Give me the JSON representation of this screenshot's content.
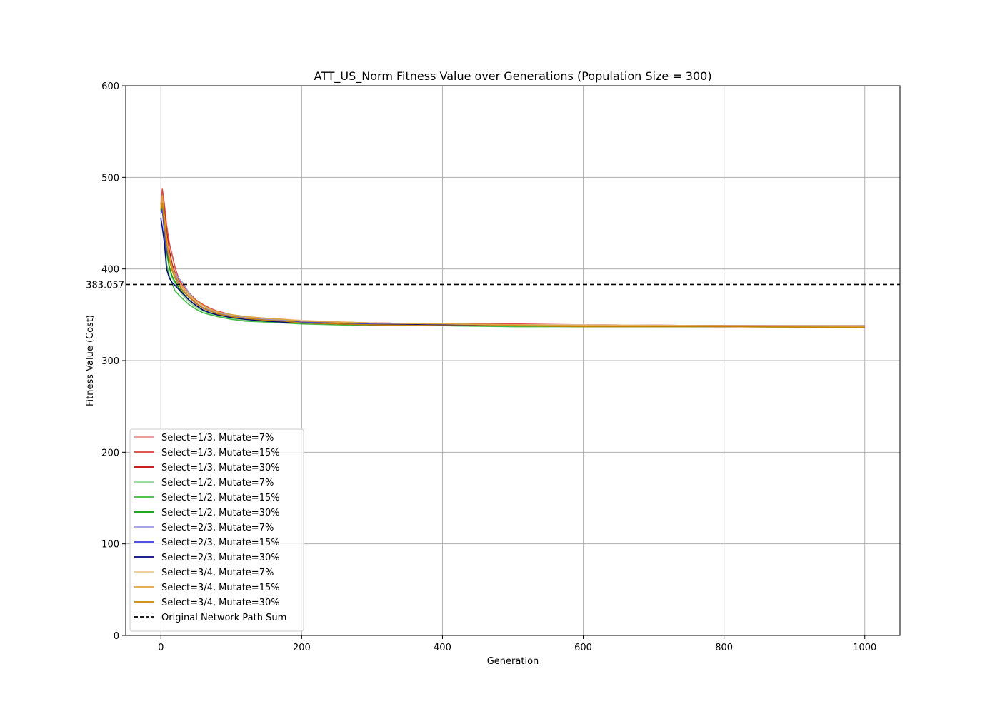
{
  "chart_data": {
    "type": "line",
    "title": "ATT_US_Norm Fitness Value over Generations (Population Size = 300)",
    "xlabel": "Generation",
    "ylabel": "Fitness Value (Cost)",
    "xlim": [
      -50,
      1050
    ],
    "ylim": [
      0,
      600
    ],
    "xticks": [
      0,
      200,
      400,
      600,
      800,
      1000
    ],
    "yticks": [
      0,
      100,
      200,
      300,
      400,
      500,
      600
    ],
    "grid": true,
    "legend_position": "lower-left",
    "reference_line": {
      "name": "Original Network Path Sum",
      "value": 383.057,
      "label": "383.057",
      "color": "#000000",
      "style": "dashed"
    },
    "series": [
      {
        "name": "Select=1/3, Mutate=7%",
        "color": "#e8908c",
        "x": [
          0,
          2,
          5,
          8,
          12,
          16,
          20,
          25,
          30,
          40,
          50,
          60,
          70,
          80,
          100,
          120,
          150,
          175,
          200,
          250,
          300,
          400,
          500,
          600,
          800,
          1000
        ],
        "values": [
          468,
          476,
          455,
          432,
          410,
          398,
          392,
          385,
          378,
          370,
          362,
          357,
          354,
          352,
          348,
          346,
          344,
          343,
          342,
          341,
          341,
          340,
          339,
          338,
          338,
          337
        ]
      },
      {
        "name": "Select=1/3, Mutate=15%",
        "color": "#d9403a",
        "x": [
          0,
          2,
          5,
          8,
          12,
          16,
          20,
          25,
          30,
          40,
          50,
          60,
          70,
          80,
          100,
          120,
          150,
          175,
          200,
          250,
          300,
          400,
          500,
          600,
          800,
          1000
        ],
        "values": [
          470,
          487,
          470,
          448,
          428,
          415,
          402,
          390,
          383,
          374,
          366,
          361,
          357,
          354,
          350,
          348,
          346,
          345,
          343,
          342,
          341,
          340,
          340,
          339,
          338,
          338
        ]
      },
      {
        "name": "Select=1/3, Mutate=30%",
        "color": "#bf0000",
        "x": [
          0,
          2,
          5,
          8,
          12,
          16,
          20,
          25,
          30,
          40,
          50,
          60,
          70,
          80,
          100,
          120,
          150,
          175,
          200,
          250,
          300,
          400,
          500,
          600,
          800,
          1000
        ],
        "values": [
          466,
          478,
          462,
          440,
          420,
          405,
          396,
          388,
          380,
          371,
          363,
          358,
          355,
          352,
          349,
          347,
          345,
          344,
          343,
          341,
          341,
          340,
          339,
          339,
          338,
          338
        ]
      },
      {
        "name": "Select=1/2, Mutate=7%",
        "color": "#8fd68f",
        "x": [
          0,
          2,
          5,
          8,
          12,
          16,
          20,
          25,
          30,
          40,
          50,
          60,
          70,
          80,
          100,
          120,
          150,
          175,
          200,
          250,
          300,
          400,
          500,
          600,
          800,
          1000
        ],
        "values": [
          465,
          470,
          448,
          418,
          400,
          390,
          384,
          378,
          372,
          364,
          358,
          354,
          351,
          349,
          346,
          344,
          343,
          342,
          341,
          340,
          339,
          339,
          338,
          338,
          337,
          337
        ]
      },
      {
        "name": "Select=1/2, Mutate=15%",
        "color": "#3cb83c",
        "x": [
          0,
          2,
          5,
          8,
          12,
          16,
          20,
          25,
          30,
          40,
          50,
          60,
          70,
          80,
          100,
          120,
          150,
          175,
          200,
          250,
          300,
          400,
          500,
          600,
          800,
          1000
        ],
        "values": [
          462,
          468,
          438,
          405,
          392,
          384,
          376,
          372,
          368,
          361,
          356,
          352,
          350,
          348,
          345,
          343,
          342,
          341,
          340,
          339,
          338,
          338,
          337,
          337,
          337,
          336
        ]
      },
      {
        "name": "Select=1/2, Mutate=30%",
        "color": "#009900",
        "x": [
          0,
          2,
          5,
          8,
          12,
          16,
          20,
          25,
          30,
          40,
          50,
          60,
          70,
          80,
          100,
          120,
          150,
          175,
          200,
          250,
          300,
          400,
          500,
          600,
          800,
          1000
        ],
        "values": [
          464,
          472,
          445,
          420,
          402,
          392,
          386,
          380,
          375,
          366,
          360,
          355,
          352,
          350,
          347,
          345,
          343,
          342,
          341,
          340,
          339,
          338,
          338,
          337,
          337,
          337
        ]
      },
      {
        "name": "Select=2/3, Mutate=7%",
        "color": "#9898e0",
        "x": [
          0,
          2,
          5,
          8,
          12,
          16,
          20,
          25,
          30,
          40,
          50,
          60,
          70,
          80,
          100,
          120,
          150,
          175,
          200,
          250,
          300,
          400,
          500,
          600,
          800,
          1000
        ],
        "values": [
          467,
          475,
          452,
          430,
          412,
          400,
          395,
          390,
          386,
          374,
          364,
          358,
          355,
          352,
          349,
          347,
          345,
          344,
          342,
          341,
          340,
          340,
          339,
          339,
          338,
          338
        ]
      },
      {
        "name": "Select=2/3, Mutate=15%",
        "color": "#3a3ae0",
        "x": [
          0,
          2,
          5,
          8,
          12,
          16,
          20,
          25,
          30,
          40,
          50,
          60,
          70,
          80,
          100,
          120,
          150,
          175,
          200,
          250,
          300,
          400,
          500,
          600,
          800,
          1000
        ],
        "values": [
          460,
          465,
          440,
          420,
          410,
          402,
          394,
          385,
          378,
          369,
          362,
          357,
          354,
          351,
          348,
          346,
          344,
          343,
          342,
          341,
          340,
          339,
          339,
          338,
          338,
          338
        ]
      },
      {
        "name": "Select=2/3, Mutate=30%",
        "color": "#00007f",
        "x": [
          0,
          2,
          5,
          8,
          12,
          16,
          20,
          25,
          30,
          40,
          50,
          60,
          70,
          80,
          100,
          120,
          150,
          175,
          200,
          250,
          300,
          400,
          500,
          600,
          800,
          1000
        ],
        "values": [
          455,
          445,
          428,
          400,
          390,
          385,
          382,
          378,
          374,
          366,
          360,
          355,
          352,
          350,
          347,
          345,
          343,
          342,
          341,
          340,
          339,
          339,
          338,
          338,
          337,
          337
        ]
      },
      {
        "name": "Select=3/4, Mutate=7%",
        "color": "#f0c890",
        "x": [
          0,
          2,
          5,
          8,
          12,
          16,
          20,
          25,
          30,
          40,
          50,
          60,
          70,
          80,
          100,
          120,
          150,
          175,
          200,
          250,
          300,
          400,
          500,
          600,
          800,
          1000
        ],
        "values": [
          466,
          474,
          450,
          428,
          410,
          398,
          390,
          384,
          379,
          371,
          364,
          359,
          356,
          353,
          350,
          348,
          346,
          345,
          344,
          342,
          341,
          340,
          339,
          339,
          338,
          338
        ]
      },
      {
        "name": "Select=3/4, Mutate=15%",
        "color": "#dba440",
        "x": [
          0,
          2,
          5,
          8,
          12,
          16,
          20,
          25,
          30,
          40,
          50,
          60,
          70,
          80,
          100,
          120,
          150,
          175,
          200,
          250,
          300,
          400,
          500,
          600,
          800,
          1000
        ],
        "values": [
          468,
          480,
          458,
          435,
          415,
          402,
          394,
          387,
          381,
          372,
          365,
          360,
          356,
          353,
          350,
          348,
          346,
          345,
          343,
          342,
          341,
          340,
          339,
          338,
          338,
          337
        ]
      },
      {
        "name": "Select=3/4, Mutate=30%",
        "color": "#cc8500",
        "x": [
          0,
          2,
          5,
          8,
          12,
          16,
          20,
          25,
          30,
          40,
          50,
          60,
          70,
          80,
          100,
          120,
          150,
          175,
          200,
          250,
          300,
          400,
          500,
          600,
          800,
          1000
        ],
        "values": [
          465,
          472,
          450,
          428,
          410,
          398,
          390,
          383,
          377,
          369,
          362,
          357,
          354,
          351,
          348,
          346,
          344,
          343,
          341,
          340,
          339,
          338,
          338,
          337,
          337,
          336
        ]
      }
    ]
  }
}
